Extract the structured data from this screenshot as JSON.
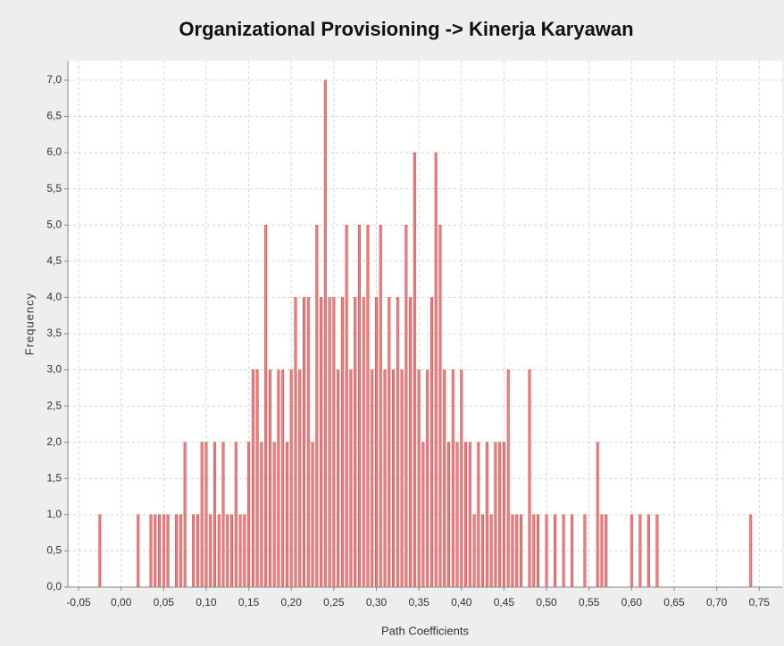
{
  "chart_data": {
    "type": "bar",
    "title": "Organizational Provisioning  -> Kinerja Karyawan",
    "x_label": "Path Coefficients",
    "y_label": "Frequency",
    "color": "#f08080",
    "edge_color": "#e04848",
    "grid": true,
    "xlim": [
      -0.0626,
      0.777
    ],
    "ylim": [
      0,
      7.27
    ],
    "xticks": [
      {
        "value": -0.05,
        "label": "-0,05"
      },
      {
        "value": 0,
        "label": "0,00"
      },
      {
        "value": 0.05,
        "label": "0,05"
      },
      {
        "value": 0.1,
        "label": "0,10"
      },
      {
        "value": 0.15,
        "label": "0,15"
      },
      {
        "value": 0.2,
        "label": "0,20"
      },
      {
        "value": 0.25,
        "label": "0,25"
      },
      {
        "value": 0.3,
        "label": "0,30"
      },
      {
        "value": 0.35,
        "label": "0,35"
      },
      {
        "value": 0.4,
        "label": "0,40"
      },
      {
        "value": 0.45,
        "label": "0,45"
      },
      {
        "value": 0.5,
        "label": "0,50"
      },
      {
        "value": 0.55,
        "label": "0,55"
      },
      {
        "value": 0.6,
        "label": "0,60"
      },
      {
        "value": 0.65,
        "label": "0,65"
      },
      {
        "value": 0.7,
        "label": "0,70"
      },
      {
        "value": 0.75,
        "label": "0,75"
      }
    ],
    "yticks": [
      {
        "value": 0,
        "label": "0,0"
      },
      {
        "value": 0.5,
        "label": "0,5"
      },
      {
        "value": 1,
        "label": "1,0"
      },
      {
        "value": 1.5,
        "label": "1,5"
      },
      {
        "value": 2,
        "label": "2,0"
      },
      {
        "value": 2.5,
        "label": "2,5"
      },
      {
        "value": 3,
        "label": "3,0"
      },
      {
        "value": 3.5,
        "label": "3,5"
      },
      {
        "value": 4,
        "label": "4,0"
      },
      {
        "value": 4.5,
        "label": "4,5"
      },
      {
        "value": 5,
        "label": "5,0"
      },
      {
        "value": 5.5,
        "label": "5,5"
      },
      {
        "value": 6,
        "label": "6,0"
      },
      {
        "value": 6.5,
        "label": "6,5"
      },
      {
        "value": 7,
        "label": "7,0"
      }
    ],
    "x": [
      -0.025,
      0.02,
      0.035,
      0.04,
      0.045,
      0.05,
      0.055,
      0.065,
      0.07,
      0.075,
      0.085,
      0.09,
      0.095,
      0.1,
      0.105,
      0.11,
      0.115,
      0.12,
      0.125,
      0.13,
      0.135,
      0.14,
      0.145,
      0.15,
      0.155,
      0.16,
      0.165,
      0.17,
      0.175,
      0.18,
      0.185,
      0.19,
      0.195,
      0.2,
      0.205,
      0.21,
      0.215,
      0.22,
      0.225,
      0.23,
      0.235,
      0.24,
      0.245,
      0.25,
      0.255,
      0.26,
      0.265,
      0.27,
      0.275,
      0.28,
      0.285,
      0.29,
      0.295,
      0.3,
      0.305,
      0.31,
      0.315,
      0.32,
      0.325,
      0.33,
      0.335,
      0.34,
      0.345,
      0.35,
      0.355,
      0.36,
      0.365,
      0.37,
      0.375,
      0.38,
      0.385,
      0.39,
      0.395,
      0.4,
      0.405,
      0.41,
      0.415,
      0.42,
      0.425,
      0.43,
      0.435,
      0.44,
      0.445,
      0.45,
      0.455,
      0.46,
      0.465,
      0.47,
      0.48,
      0.485,
      0.49,
      0.5,
      0.51,
      0.52,
      0.53,
      0.545,
      0.56,
      0.565,
      0.57,
      0.6,
      0.61,
      0.62,
      0.63,
      0.74
    ],
    "values": [
      1,
      1,
      1,
      1,
      1,
      1,
      1,
      1,
      1,
      2,
      1,
      1,
      2,
      2,
      1,
      2,
      1,
      2,
      1,
      1,
      2,
      1,
      1,
      2,
      3,
      3,
      2,
      5,
      3,
      2,
      3,
      3,
      2,
      3,
      4,
      3,
      4,
      4,
      2,
      5,
      4,
      7,
      4,
      4,
      3,
      4,
      5,
      3,
      4,
      5,
      4,
      5,
      3,
      4,
      5,
      3,
      4,
      3,
      4,
      3,
      5,
      4,
      6,
      3,
      2,
      3,
      4,
      6,
      5,
      3,
      2,
      3,
      2,
      3,
      2,
      2,
      1,
      2,
      1,
      2,
      1,
      2,
      2,
      2,
      3,
      1,
      1,
      1,
      3,
      1,
      1,
      1,
      1,
      1,
      1,
      1,
      2,
      1,
      1,
      1,
      1,
      1,
      1,
      1
    ]
  }
}
